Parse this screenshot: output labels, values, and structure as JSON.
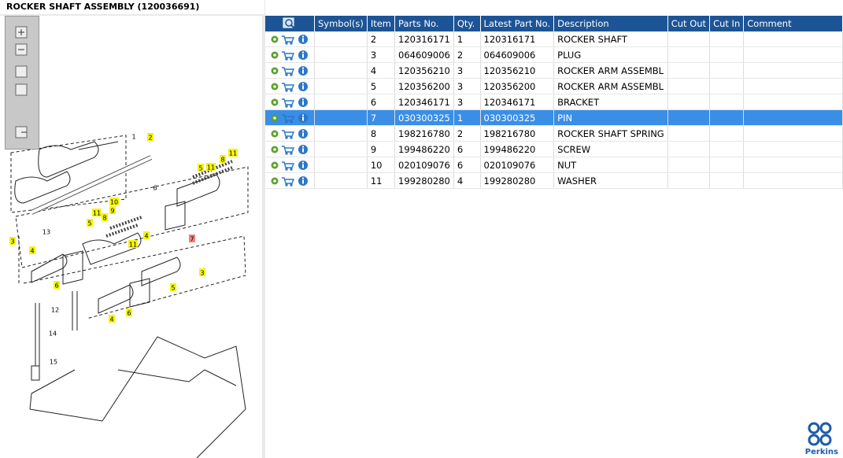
{
  "header": {
    "title": "ROCKER SHAFT ASSEMBLY (120036691)"
  },
  "diagram": {
    "callouts": [
      {
        "label": "1",
        "style": "plain"
      },
      {
        "label": "2",
        "style": "yellow"
      },
      {
        "label": "3",
        "style": "yellow"
      },
      {
        "label": "3",
        "style": "yellow"
      },
      {
        "label": "4",
        "style": "yellow"
      },
      {
        "label": "4",
        "style": "yellow"
      },
      {
        "label": "4",
        "style": "yellow"
      },
      {
        "label": "5",
        "style": "yellow"
      },
      {
        "label": "5",
        "style": "yellow"
      },
      {
        "label": "5",
        "style": "yellow"
      },
      {
        "label": "6",
        "style": "plain"
      },
      {
        "label": "6",
        "style": "yellow"
      },
      {
        "label": "6",
        "style": "yellow"
      },
      {
        "label": "7",
        "style": "red"
      },
      {
        "label": "8",
        "style": "yellow"
      },
      {
        "label": "8",
        "style": "yellow"
      },
      {
        "label": "9",
        "style": "yellow"
      },
      {
        "label": "10",
        "style": "yellow"
      },
      {
        "label": "11",
        "style": "yellow"
      },
      {
        "label": "11",
        "style": "yellow"
      },
      {
        "label": "11",
        "style": "yellow"
      },
      {
        "label": "11",
        "style": "yellow"
      },
      {
        "label": "12",
        "style": "plain"
      },
      {
        "label": "13",
        "style": "plain"
      },
      {
        "label": "14",
        "style": "plain"
      },
      {
        "label": "15",
        "style": "plain"
      }
    ]
  },
  "table": {
    "columns": [
      "Symbol(s)",
      "Item",
      "Parts No.",
      "Qty.",
      "Latest Part No.",
      "Description",
      "Cut Out",
      "Cut In",
      "Comment"
    ],
    "selected_row": 5,
    "rows": [
      {
        "item": "2",
        "parts_no": "120316171",
        "qty": "1",
        "latest_part_no": "120316171",
        "description": "ROCKER SHAFT"
      },
      {
        "item": "3",
        "parts_no": "064609006",
        "qty": "2",
        "latest_part_no": "064609006",
        "description": "PLUG"
      },
      {
        "item": "4",
        "parts_no": "120356210",
        "qty": "3",
        "latest_part_no": "120356210",
        "description": "ROCKER ARM ASSEMBL"
      },
      {
        "item": "5",
        "parts_no": "120356200",
        "qty": "3",
        "latest_part_no": "120356200",
        "description": "ROCKER ARM ASSEMBL"
      },
      {
        "item": "6",
        "parts_no": "120346171",
        "qty": "3",
        "latest_part_no": "120346171",
        "description": "BRACKET"
      },
      {
        "item": "7",
        "parts_no": "030300325",
        "qty": "1",
        "latest_part_no": "030300325",
        "description": "PIN"
      },
      {
        "item": "8",
        "parts_no": "198216780",
        "qty": "2",
        "latest_part_no": "198216780",
        "description": "ROCKER SHAFT SPRING"
      },
      {
        "item": "9",
        "parts_no": "199486220",
        "qty": "6",
        "latest_part_no": "199486220",
        "description": "SCREW"
      },
      {
        "item": "10",
        "parts_no": "020109076",
        "qty": "6",
        "latest_part_no": "020109076",
        "description": "NUT"
      },
      {
        "item": "11",
        "parts_no": "199280280",
        "qty": "4",
        "latest_part_no": "199280280",
        "description": "WASHER"
      }
    ]
  },
  "brand": "Perkins"
}
